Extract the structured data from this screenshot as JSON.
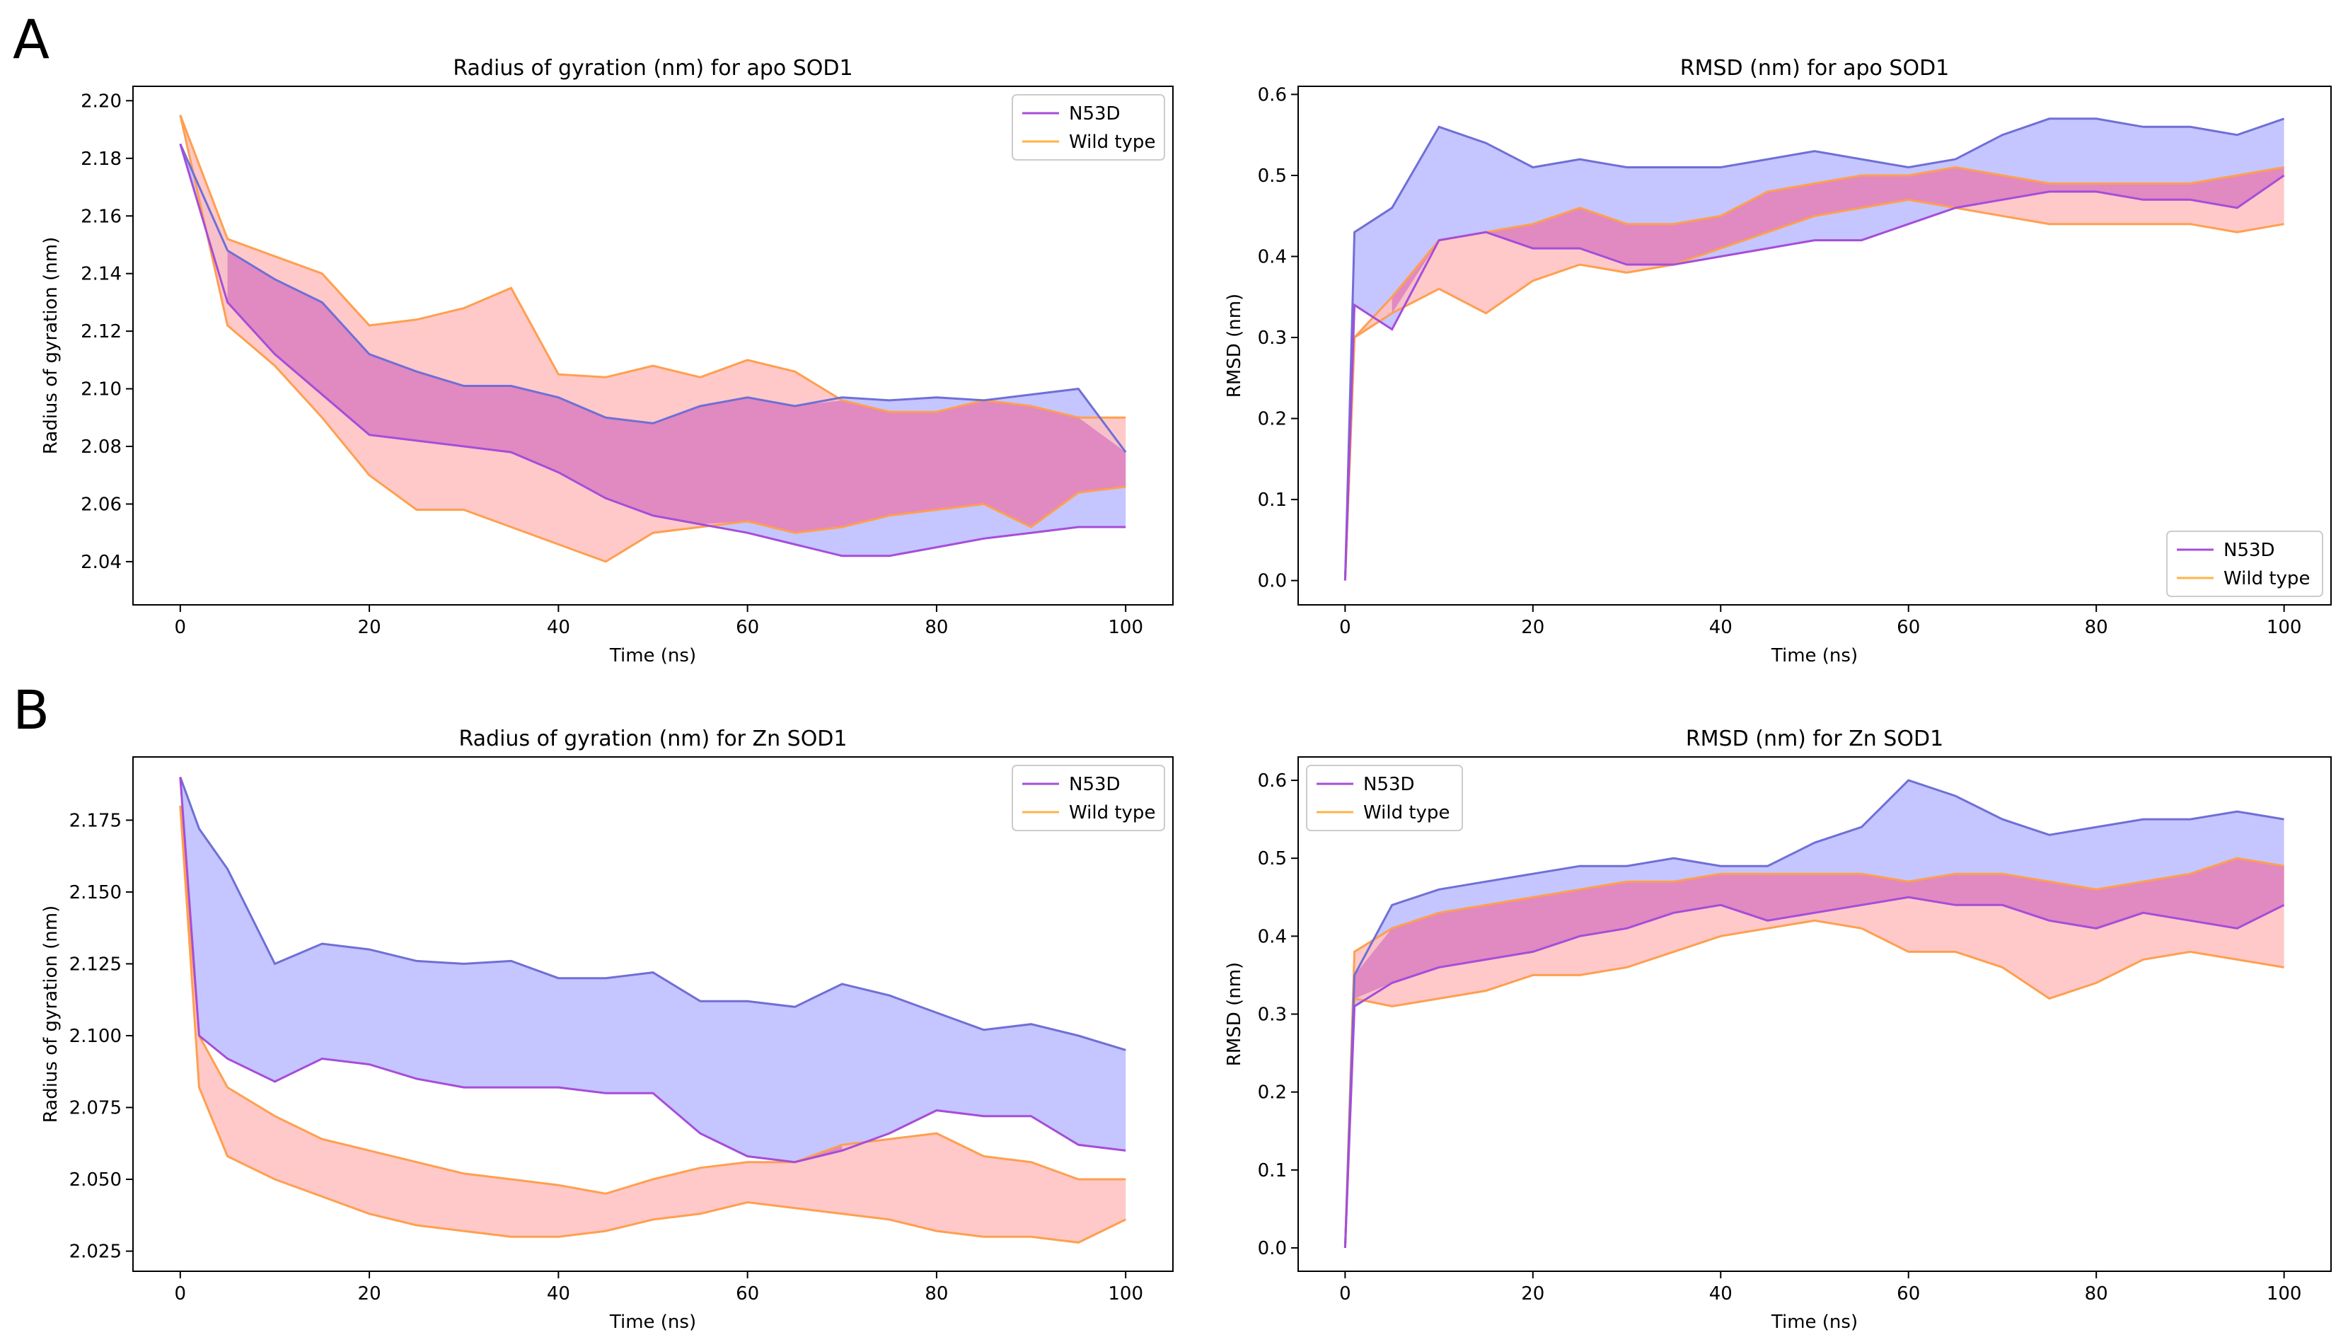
{
  "figure": {
    "panel_letters": [
      "A",
      "B"
    ]
  },
  "legend_labels": [
    "N53D",
    "Wild type"
  ],
  "colors": {
    "n53d_line": "#a64dd9",
    "n53d_edge": "#6f6fd6",
    "n53d_fill": "#c5c5ff",
    "wt_line": "#ffb347",
    "wt_edge": "#ff9f4f",
    "wt_fill": "#ffbfbf",
    "overlap_fill": "#dd7fc0",
    "start_line": "#e8833a"
  },
  "chart_data": [
    {
      "id": "rg-apo",
      "type": "line",
      "title": "Radius of gyration (nm) for apo SOD1",
      "xlabel": "Time (ns)",
      "ylabel": "Radius of gyration (nm)",
      "xlim": [
        -5,
        105
      ],
      "ylim": [
        2.025,
        2.205
      ],
      "xticks": [
        0,
        20,
        40,
        60,
        80,
        100
      ],
      "xtick_labels": [
        "0",
        "20",
        "40",
        "60",
        "80",
        "100"
      ],
      "yticks": [
        2.04,
        2.06,
        2.08,
        2.1,
        2.12,
        2.14,
        2.16,
        2.18,
        2.2
      ],
      "ytick_labels": [
        "2.04",
        "2.06",
        "2.08",
        "2.10",
        "2.12",
        "2.14",
        "2.16",
        "2.18",
        "2.20"
      ],
      "legend": "top-right",
      "x": [
        0,
        5,
        10,
        15,
        20,
        25,
        30,
        35,
        40,
        45,
        50,
        55,
        60,
        65,
        70,
        75,
        80,
        85,
        90,
        95,
        100
      ],
      "series": [
        {
          "name": "N53D",
          "upper": [
            2.185,
            2.148,
            2.138,
            2.13,
            2.112,
            2.106,
            2.101,
            2.101,
            2.097,
            2.09,
            2.088,
            2.094,
            2.097,
            2.094,
            2.097,
            2.096,
            2.097,
            2.096,
            2.098,
            2.1,
            2.078
          ],
          "lower": [
            2.185,
            2.13,
            2.112,
            2.098,
            2.084,
            2.082,
            2.08,
            2.078,
            2.071,
            2.062,
            2.056,
            2.053,
            2.05,
            2.046,
            2.042,
            2.042,
            2.045,
            2.048,
            2.05,
            2.052,
            2.052
          ]
        },
        {
          "name": "Wild type",
          "upper": [
            2.195,
            2.152,
            2.146,
            2.14,
            2.122,
            2.124,
            2.128,
            2.135,
            2.105,
            2.104,
            2.108,
            2.104,
            2.11,
            2.106,
            2.096,
            2.092,
            2.092,
            2.096,
            2.094,
            2.09,
            2.09
          ],
          "lower": [
            2.195,
            2.122,
            2.108,
            2.09,
            2.07,
            2.058,
            2.058,
            2.052,
            2.046,
            2.04,
            2.05,
            2.052,
            2.054,
            2.05,
            2.052,
            2.056,
            2.058,
            2.06,
            2.052,
            2.064,
            2.066
          ]
        }
      ]
    },
    {
      "id": "rmsd-apo",
      "type": "line",
      "title": "RMSD (nm) for apo SOD1",
      "xlabel": "Time (ns)",
      "ylabel": "RMSD (nm)",
      "xlim": [
        -5,
        105
      ],
      "ylim": [
        -0.03,
        0.61
      ],
      "xticks": [
        0,
        20,
        40,
        60,
        80,
        100
      ],
      "xtick_labels": [
        "0",
        "20",
        "40",
        "60",
        "80",
        "100"
      ],
      "yticks": [
        0.0,
        0.1,
        0.2,
        0.3,
        0.4,
        0.5,
        0.6
      ],
      "ytick_labels": [
        "0.0",
        "0.1",
        "0.2",
        "0.3",
        "0.4",
        "0.5",
        "0.6"
      ],
      "legend": "bottom-right",
      "x": [
        0,
        1,
        5,
        10,
        15,
        20,
        25,
        30,
        35,
        40,
        45,
        50,
        55,
        60,
        65,
        70,
        75,
        80,
        85,
        90,
        95,
        100
      ],
      "series": [
        {
          "name": "N53D",
          "upper": [
            0.0,
            0.43,
            0.46,
            0.56,
            0.54,
            0.51,
            0.52,
            0.51,
            0.51,
            0.51,
            0.52,
            0.53,
            0.52,
            0.51,
            0.52,
            0.55,
            0.57,
            0.57,
            0.56,
            0.56,
            0.55,
            0.57
          ],
          "lower": [
            0.0,
            0.34,
            0.31,
            0.42,
            0.43,
            0.41,
            0.41,
            0.39,
            0.39,
            0.4,
            0.41,
            0.42,
            0.42,
            0.44,
            0.46,
            0.47,
            0.48,
            0.48,
            0.47,
            0.47,
            0.46,
            0.5
          ]
        },
        {
          "name": "Wild type",
          "upper": [
            0.0,
            0.3,
            0.35,
            0.42,
            0.43,
            0.44,
            0.46,
            0.44,
            0.44,
            0.45,
            0.48,
            0.49,
            0.5,
            0.5,
            0.51,
            0.5,
            0.49,
            0.49,
            0.49,
            0.49,
            0.5,
            0.51
          ],
          "lower": [
            0.0,
            0.3,
            0.33,
            0.36,
            0.33,
            0.37,
            0.39,
            0.38,
            0.39,
            0.41,
            0.43,
            0.45,
            0.46,
            0.47,
            0.46,
            0.45,
            0.44,
            0.44,
            0.44,
            0.44,
            0.43,
            0.44
          ]
        }
      ]
    },
    {
      "id": "rg-zn",
      "type": "line",
      "title": "Radius of gyration (nm) for Zn SOD1",
      "xlabel": "Time (ns)",
      "ylabel": "Radius of gyration (nm)",
      "xlim": [
        -5,
        105
      ],
      "ylim": [
        2.018,
        2.197
      ],
      "xticks": [
        0,
        20,
        40,
        60,
        80,
        100
      ],
      "xtick_labels": [
        "0",
        "20",
        "40",
        "60",
        "80",
        "100"
      ],
      "yticks": [
        2.025,
        2.05,
        2.075,
        2.1,
        2.125,
        2.15,
        2.175
      ],
      "ytick_labels": [
        "2.025",
        "2.050",
        "2.075",
        "2.100",
        "2.125",
        "2.150",
        "2.175"
      ],
      "legend": "top-right",
      "x": [
        0,
        2,
        5,
        10,
        15,
        20,
        25,
        30,
        35,
        40,
        45,
        50,
        55,
        60,
        65,
        70,
        75,
        80,
        85,
        90,
        95,
        100
      ],
      "series": [
        {
          "name": "N53D",
          "upper": [
            2.19,
            2.172,
            2.158,
            2.125,
            2.132,
            2.13,
            2.126,
            2.125,
            2.126,
            2.12,
            2.12,
            2.122,
            2.112,
            2.112,
            2.11,
            2.118,
            2.114,
            2.108,
            2.102,
            2.104,
            2.1,
            2.095
          ],
          "lower": [
            2.19,
            2.1,
            2.092,
            2.084,
            2.092,
            2.09,
            2.085,
            2.082,
            2.082,
            2.082,
            2.08,
            2.08,
            2.066,
            2.058,
            2.056,
            2.06,
            2.066,
            2.074,
            2.072,
            2.072,
            2.062,
            2.06
          ]
        },
        {
          "name": "Wild type",
          "upper": [
            2.18,
            2.1,
            2.082,
            2.072,
            2.064,
            2.06,
            2.056,
            2.052,
            2.05,
            2.048,
            2.045,
            2.05,
            2.054,
            2.056,
            2.056,
            2.062,
            2.064,
            2.066,
            2.058,
            2.056,
            2.05,
            2.05
          ],
          "lower": [
            2.18,
            2.082,
            2.058,
            2.05,
            2.044,
            2.038,
            2.034,
            2.032,
            2.03,
            2.03,
            2.032,
            2.036,
            2.038,
            2.042,
            2.04,
            2.038,
            2.036,
            2.032,
            2.03,
            2.03,
            2.028,
            2.036
          ]
        }
      ]
    },
    {
      "id": "rmsd-zn",
      "type": "line",
      "title": "RMSD (nm) for Zn SOD1",
      "xlabel": "Time (ns)",
      "ylabel": "RMSD (nm)",
      "xlim": [
        -5,
        105
      ],
      "ylim": [
        -0.03,
        0.63
      ],
      "xticks": [
        0,
        20,
        40,
        60,
        80,
        100
      ],
      "xtick_labels": [
        "0",
        "20",
        "40",
        "60",
        "80",
        "100"
      ],
      "yticks": [
        0.0,
        0.1,
        0.2,
        0.3,
        0.4,
        0.5,
        0.6
      ],
      "ytick_labels": [
        "0.0",
        "0.1",
        "0.2",
        "0.3",
        "0.4",
        "0.5",
        "0.6"
      ],
      "legend": "top-left",
      "x": [
        0,
        1,
        5,
        10,
        15,
        20,
        25,
        30,
        35,
        40,
        45,
        50,
        55,
        60,
        65,
        70,
        75,
        80,
        85,
        90,
        95,
        100
      ],
      "series": [
        {
          "name": "N53D",
          "upper": [
            0.0,
            0.35,
            0.44,
            0.46,
            0.47,
            0.48,
            0.49,
            0.49,
            0.5,
            0.49,
            0.49,
            0.52,
            0.54,
            0.6,
            0.58,
            0.55,
            0.53,
            0.54,
            0.55,
            0.55,
            0.56,
            0.55
          ],
          "lower": [
            0.0,
            0.31,
            0.34,
            0.36,
            0.37,
            0.38,
            0.4,
            0.41,
            0.43,
            0.44,
            0.42,
            0.43,
            0.44,
            0.45,
            0.44,
            0.44,
            0.42,
            0.41,
            0.43,
            0.42,
            0.41,
            0.44
          ]
        },
        {
          "name": "Wild type",
          "upper": [
            0.0,
            0.38,
            0.41,
            0.43,
            0.44,
            0.45,
            0.46,
            0.47,
            0.47,
            0.48,
            0.48,
            0.48,
            0.48,
            0.47,
            0.48,
            0.48,
            0.47,
            0.46,
            0.47,
            0.48,
            0.5,
            0.49
          ],
          "lower": [
            0.0,
            0.32,
            0.31,
            0.32,
            0.33,
            0.35,
            0.35,
            0.36,
            0.38,
            0.4,
            0.41,
            0.42,
            0.41,
            0.38,
            0.38,
            0.36,
            0.32,
            0.34,
            0.37,
            0.38,
            0.37,
            0.36
          ]
        }
      ]
    }
  ]
}
